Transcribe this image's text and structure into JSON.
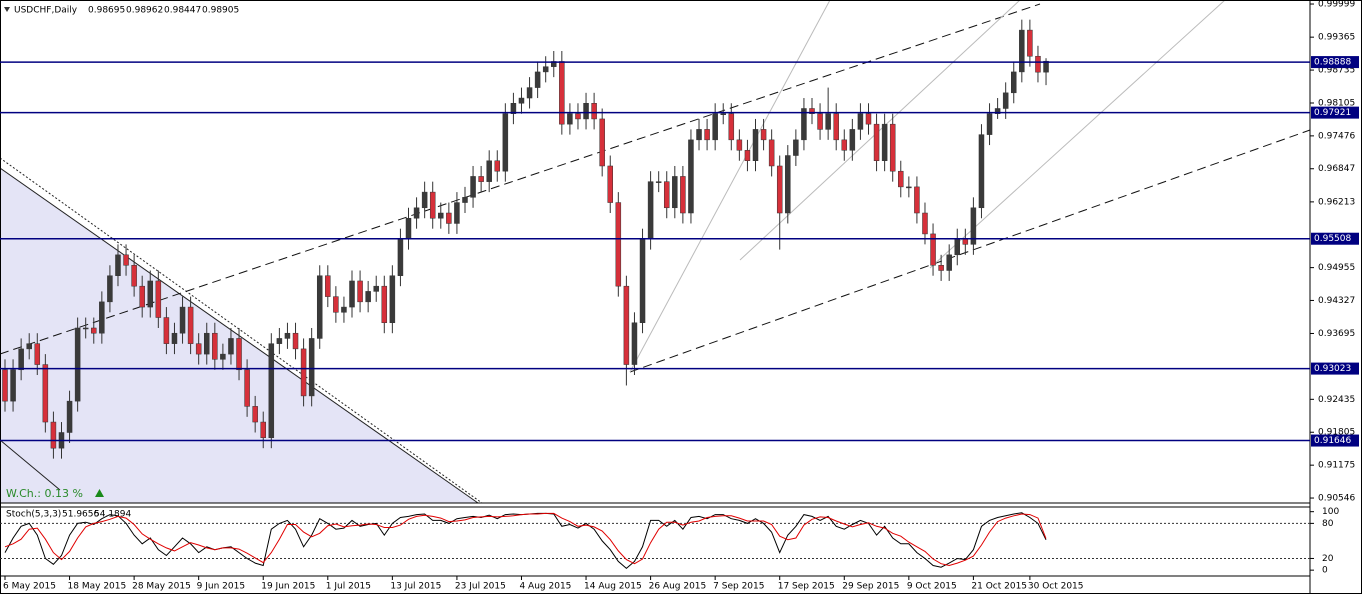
{
  "chart_data": {
    "type": "candlestick",
    "title": "USDCHF,Daily",
    "categories": [
      "6 May 2015",
      null,
      null,
      null,
      null,
      null,
      null,
      null,
      "18 May 2015",
      null,
      null,
      null,
      null,
      null,
      null,
      null,
      "28 May 2015",
      null,
      null,
      null,
      null,
      null,
      null,
      null,
      "9 Jun 2015",
      null,
      null,
      null,
      null,
      null,
      null,
      null,
      "19 Jun 2015",
      null,
      null,
      null,
      null,
      null,
      null,
      null,
      "1 Jul 2015",
      null,
      null,
      null,
      null,
      null,
      null,
      null,
      "13 Jul 2015",
      null,
      null,
      null,
      null,
      null,
      null,
      null,
      "23 Jul 2015",
      null,
      null,
      null,
      null,
      null,
      null,
      null,
      "4 Aug 2015",
      null,
      null,
      null,
      null,
      null,
      null,
      null,
      "14 Aug 2015",
      null,
      null,
      null,
      null,
      null,
      null,
      null,
      "26 Aug 2015",
      null,
      null,
      null,
      null,
      null,
      null,
      null,
      "7 Sep 2015",
      null,
      null,
      null,
      null,
      null,
      null,
      null,
      "17 Sep 2015",
      null,
      null,
      null,
      null,
      null,
      null,
      null,
      "29 Sep 2015",
      null,
      null,
      null,
      null,
      null,
      null,
      null,
      "9 Oct 2015",
      null,
      null,
      null,
      null,
      null,
      null,
      null,
      "21 Oct 2015",
      null,
      null,
      null,
      null,
      null,
      null,
      "30 Oct 2015",
      null,
      null
    ],
    "ohlc": [
      [
        0.93,
        0.932,
        0.922,
        0.924
      ],
      [
        0.924,
        0.932,
        0.922,
        0.93
      ],
      [
        0.93,
        0.936,
        0.928,
        0.934
      ],
      [
        0.934,
        0.937,
        0.932,
        0.935
      ],
      [
        0.935,
        0.937,
        0.929,
        0.931
      ],
      [
        0.931,
        0.933,
        0.918,
        0.92
      ],
      [
        0.92,
        0.922,
        0.913,
        0.915
      ],
      [
        0.915,
        0.92,
        0.913,
        0.918
      ],
      [
        0.918,
        0.926,
        0.916,
        0.924
      ],
      [
        0.924,
        0.94,
        0.922,
        0.938
      ],
      [
        0.938,
        0.94,
        0.936,
        0.938
      ],
      [
        0.938,
        0.94,
        0.935,
        0.937
      ],
      [
        0.937,
        0.945,
        0.935,
        0.943
      ],
      [
        0.943,
        0.95,
        0.941,
        0.948
      ],
      [
        0.948,
        0.954,
        0.946,
        0.952
      ],
      [
        0.952,
        0.954,
        0.948,
        0.95
      ],
      [
        0.95,
        0.952,
        0.944,
        0.946
      ],
      [
        0.946,
        0.948,
        0.94,
        0.942
      ],
      [
        0.942,
        0.949,
        0.94,
        0.947
      ],
      [
        0.947,
        0.949,
        0.938,
        0.94
      ],
      [
        0.94,
        0.942,
        0.933,
        0.935
      ],
      [
        0.935,
        0.939,
        0.933,
        0.937
      ],
      [
        0.937,
        0.944,
        0.935,
        0.942
      ],
      [
        0.942,
        0.944,
        0.933,
        0.935
      ],
      [
        0.935,
        0.937,
        0.931,
        0.933
      ],
      [
        0.933,
        0.939,
        0.931,
        0.937
      ],
      [
        0.937,
        0.939,
        0.93,
        0.932
      ],
      [
        0.932,
        0.935,
        0.93,
        0.933
      ],
      [
        0.933,
        0.938,
        0.931,
        0.936
      ],
      [
        0.936,
        0.938,
        0.928,
        0.93
      ],
      [
        0.93,
        0.932,
        0.921,
        0.923
      ],
      [
        0.923,
        0.925,
        0.918,
        0.92
      ],
      [
        0.92,
        0.922,
        0.915,
        0.917
      ],
      [
        0.917,
        0.937,
        0.915,
        0.935
      ],
      [
        0.935,
        0.938,
        0.933,
        0.936
      ],
      [
        0.936,
        0.939,
        0.934,
        0.937
      ],
      [
        0.937,
        0.939,
        0.932,
        0.934
      ],
      [
        0.934,
        0.936,
        0.923,
        0.925
      ],
      [
        0.925,
        0.938,
        0.923,
        0.936
      ],
      [
        0.936,
        0.95,
        0.934,
        0.948
      ],
      [
        0.948,
        0.95,
        0.942,
        0.944
      ],
      [
        0.944,
        0.946,
        0.939,
        0.941
      ],
      [
        0.941,
        0.944,
        0.939,
        0.942
      ],
      [
        0.942,
        0.949,
        0.94,
        0.947
      ],
      [
        0.947,
        0.949,
        0.941,
        0.943
      ],
      [
        0.943,
        0.947,
        0.941,
        0.945
      ],
      [
        0.945,
        0.948,
        0.943,
        0.946
      ],
      [
        0.946,
        0.948,
        0.937,
        0.939
      ],
      [
        0.939,
        0.95,
        0.937,
        0.948
      ],
      [
        0.948,
        0.957,
        0.946,
        0.955
      ],
      [
        0.955,
        0.961,
        0.953,
        0.959
      ],
      [
        0.959,
        0.963,
        0.957,
        0.961
      ],
      [
        0.961,
        0.966,
        0.959,
        0.964
      ],
      [
        0.964,
        0.966,
        0.957,
        0.959
      ],
      [
        0.959,
        0.962,
        0.957,
        0.96
      ],
      [
        0.96,
        0.962,
        0.956,
        0.958
      ],
      [
        0.958,
        0.964,
        0.956,
        0.962
      ],
      [
        0.962,
        0.965,
        0.96,
        0.963
      ],
      [
        0.963,
        0.969,
        0.961,
        0.967
      ],
      [
        0.967,
        0.969,
        0.964,
        0.966
      ],
      [
        0.966,
        0.972,
        0.964,
        0.97
      ],
      [
        0.97,
        0.972,
        0.966,
        0.968
      ],
      [
        0.968,
        0.981,
        0.966,
        0.979
      ],
      [
        0.979,
        0.983,
        0.977,
        0.981
      ],
      [
        0.981,
        0.984,
        0.979,
        0.982
      ],
      [
        0.982,
        0.986,
        0.98,
        0.984
      ],
      [
        0.984,
        0.989,
        0.982,
        0.987
      ],
      [
        0.987,
        0.99,
        0.985,
        0.988
      ],
      [
        0.988,
        0.991,
        0.986,
        0.989
      ],
      [
        0.989,
        0.991,
        0.975,
        0.977
      ],
      [
        0.977,
        0.981,
        0.975,
        0.979
      ],
      [
        0.979,
        0.981,
        0.976,
        0.978
      ],
      [
        0.978,
        0.983,
        0.976,
        0.981
      ],
      [
        0.981,
        0.983,
        0.976,
        0.978
      ],
      [
        0.978,
        0.98,
        0.967,
        0.969
      ],
      [
        0.969,
        0.971,
        0.96,
        0.962
      ],
      [
        0.962,
        0.964,
        0.944,
        0.946
      ],
      [
        0.946,
        0.948,
        0.927,
        0.931
      ],
      [
        0.931,
        0.941,
        0.929,
        0.939
      ],
      [
        0.939,
        0.957,
        0.937,
        0.955
      ],
      [
        0.955,
        0.968,
        0.953,
        0.966
      ],
      [
        0.966,
        0.968,
        0.964,
        0.966
      ],
      [
        0.966,
        0.968,
        0.959,
        0.961
      ],
      [
        0.961,
        0.969,
        0.959,
        0.967
      ],
      [
        0.967,
        0.969,
        0.958,
        0.96
      ],
      [
        0.96,
        0.976,
        0.958,
        0.974
      ],
      [
        0.974,
        0.978,
        0.972,
        0.976
      ],
      [
        0.976,
        0.978,
        0.972,
        0.974
      ],
      [
        0.974,
        0.981,
        0.972,
        0.979
      ],
      [
        0.979,
        0.981,
        0.977,
        0.979
      ],
      [
        0.979,
        0.981,
        0.972,
        0.974
      ],
      [
        0.974,
        0.976,
        0.97,
        0.972
      ],
      [
        0.972,
        0.974,
        0.968,
        0.97
      ],
      [
        0.97,
        0.978,
        0.968,
        0.976
      ],
      [
        0.976,
        0.978,
        0.972,
        0.974
      ],
      [
        0.974,
        0.976,
        0.967,
        0.969
      ],
      [
        0.969,
        0.971,
        0.953,
        0.96
      ],
      [
        0.96,
        0.973,
        0.958,
        0.971
      ],
      [
        0.971,
        0.976,
        0.969,
        0.974
      ],
      [
        0.974,
        0.982,
        0.972,
        0.98
      ],
      [
        0.98,
        0.982,
        0.977,
        0.979
      ],
      [
        0.979,
        0.981,
        0.974,
        0.976
      ],
      [
        0.976,
        0.984,
        0.974,
        0.979
      ],
      [
        0.979,
        0.981,
        0.972,
        0.974
      ],
      [
        0.974,
        0.976,
        0.97,
        0.972
      ],
      [
        0.972,
        0.978,
        0.97,
        0.976
      ],
      [
        0.976,
        0.981,
        0.974,
        0.979
      ],
      [
        0.979,
        0.981,
        0.975,
        0.977
      ],
      [
        0.977,
        0.979,
        0.968,
        0.97
      ],
      [
        0.97,
        0.979,
        0.968,
        0.977
      ],
      [
        0.977,
        0.979,
        0.966,
        0.968
      ],
      [
        0.968,
        0.97,
        0.963,
        0.965
      ],
      [
        0.965,
        0.967,
        0.963,
        0.965
      ],
      [
        0.965,
        0.967,
        0.958,
        0.96
      ],
      [
        0.96,
        0.962,
        0.954,
        0.956
      ],
      [
        0.956,
        0.958,
        0.948,
        0.95
      ],
      [
        0.95,
        0.952,
        0.947,
        0.949
      ],
      [
        0.949,
        0.954,
        0.947,
        0.952
      ],
      [
        0.952,
        0.957,
        0.95,
        0.955
      ],
      [
        0.955,
        0.957,
        0.952,
        0.954
      ],
      [
        0.954,
        0.963,
        0.952,
        0.961
      ],
      [
        0.961,
        0.977,
        0.959,
        0.975
      ],
      [
        0.975,
        0.981,
        0.973,
        0.979
      ],
      [
        0.979,
        0.982,
        0.978,
        0.98
      ],
      [
        0.98,
        0.985,
        0.978,
        0.983
      ],
      [
        0.983,
        0.989,
        0.981,
        0.987
      ],
      [
        0.987,
        0.997,
        0.985,
        0.995
      ],
      [
        0.995,
        0.997,
        0.988,
        0.99
      ],
      [
        0.99,
        0.992,
        0.985,
        0.98695
      ],
      [
        0.98695,
        0.98962,
        0.98447,
        0.98905
      ]
    ],
    "up_color": "#3a3a3a",
    "down_color": "#d6303a",
    "ylim": [
      0.90451,
      1.00076
    ],
    "yticks": [
      0.99999,
      0.99365,
      0.98735,
      0.98105,
      0.97476,
      0.96847,
      0.96213,
      0.94955,
      0.94327,
      0.93695,
      0.92435,
      0.91805,
      0.91175,
      0.90546
    ],
    "levels": [
      0.98888,
      0.97921,
      0.95508,
      0.93023,
      0.91646
    ],
    "level_color": "#000080",
    "annotation": "W.Ch.: 0.13 %",
    "stoch": {
      "title": "Stoch(5,3,3)",
      "ylim": [
        -10,
        108
      ],
      "yticks": [
        0,
        20,
        80,
        100
      ],
      "series": [
        {
          "color": "#000000",
          "values": [
            30,
            55,
            75,
            80,
            60,
            20,
            10,
            25,
            60,
            80,
            82,
            78,
            88,
            95,
            93,
            80,
            60,
            45,
            55,
            35,
            25,
            40,
            55,
            45,
            30,
            40,
            35,
            38,
            40,
            30,
            20,
            12,
            8,
            70,
            80,
            85,
            70,
            40,
            60,
            88,
            80,
            70,
            72,
            85,
            75,
            78,
            80,
            60,
            80,
            90,
            92,
            95,
            96,
            85,
            85,
            80,
            88,
            90,
            92,
            90,
            94,
            88,
            95,
            96,
            95,
            96,
            97,
            97,
            96,
            75,
            78,
            72,
            80,
            70,
            50,
            35,
            15,
            3,
            15,
            40,
            85,
            85,
            75,
            85,
            70,
            90,
            92,
            88,
            95,
            95,
            88,
            85,
            80,
            88,
            80,
            65,
            30,
            60,
            75,
            95,
            92,
            85,
            92,
            75,
            70,
            78,
            85,
            80,
            60,
            75,
            55,
            45,
            45,
            30,
            20,
            8,
            5,
            12,
            20,
            18,
            35,
            75,
            85,
            90,
            93,
            96,
            98,
            90,
            80,
            51.9656
          ]
        },
        {
          "color": "#e00000",
          "values": [
            40,
            45,
            53,
            70,
            72,
            53,
            30,
            18,
            32,
            55,
            74,
            80,
            83,
            87,
            92,
            89,
            78,
            62,
            53,
            45,
            38,
            33,
            40,
            47,
            43,
            38,
            35,
            38,
            38,
            36,
            29,
            21,
            13,
            30,
            53,
            78,
            78,
            65,
            57,
            63,
            76,
            79,
            74,
            76,
            77,
            79,
            78,
            73,
            73,
            77,
            87,
            92,
            94,
            92,
            89,
            83,
            84,
            86,
            90,
            91,
            92,
            91,
            92,
            93,
            95,
            96,
            96,
            97,
            97,
            89,
            83,
            75,
            77,
            74,
            67,
            52,
            33,
            18,
            11,
            19,
            47,
            70,
            82,
            82,
            77,
            82,
            84,
            90,
            92,
            93,
            93,
            89,
            84,
            84,
            84,
            78,
            58,
            52,
            55,
            77,
            87,
            91,
            90,
            84,
            79,
            74,
            78,
            81,
            75,
            72,
            63,
            58,
            48,
            40,
            32,
            19,
            11,
            8,
            12,
            17,
            24,
            43,
            65,
            83,
            89,
            93,
            96,
            95,
            89,
            54.1894
          ]
        }
      ]
    }
  }
}
